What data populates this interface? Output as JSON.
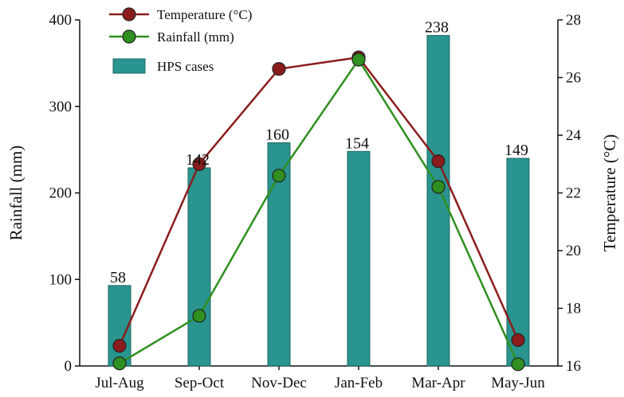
{
  "chart_data": {
    "type": "bar",
    "categories": [
      "Jul-Aug",
      "Sep-Oct",
      "Nov-Dec",
      "Jan-Feb",
      "Mar-Apr",
      "May-Jun"
    ],
    "series": [
      {
        "name": "HPS cases",
        "kind": "bar",
        "axis": "left",
        "values": [
          93,
          229,
          258,
          248,
          382,
          240
        ],
        "labels": [
          "58",
          "142",
          "160",
          "154",
          "238",
          "149"
        ],
        "color": "#2a948f"
      },
      {
        "name": "Temperature (°C)",
        "kind": "line",
        "axis": "right",
        "values": [
          16.7,
          23.0,
          26.3,
          26.7,
          23.1,
          16.9
        ],
        "color": "#8b1c1c"
      },
      {
        "name": "Rainfall (mm)",
        "kind": "line",
        "axis": "left",
        "values": [
          3,
          58,
          220,
          354,
          207,
          2
        ],
        "color": "#2f8f1f"
      }
    ],
    "ylabel": "Rainfall (mm)",
    "ylim": [
      0,
      400
    ],
    "yticks": [
      "0",
      "100",
      "200",
      "300",
      "400"
    ],
    "y2label": "Temperature (°C)",
    "y2lim": [
      16,
      28
    ],
    "y2ticks": [
      "16",
      "18",
      "20",
      "22",
      "24",
      "26",
      "28"
    ],
    "legend": {
      "placement": "top-left",
      "items": [
        "Temperature (°C)",
        "Rainfall (mm)",
        "HPS cases"
      ]
    },
    "grid": false
  }
}
